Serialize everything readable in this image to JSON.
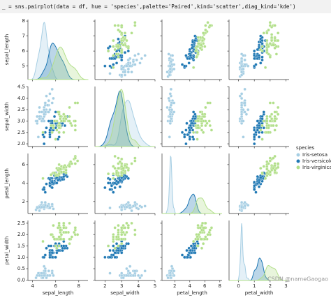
{
  "code": "_ = sns.pairplot(data = df, hue = 'species',palette='Paired',kind='scatter',diag_kind='kde')",
  "watermark": "CSDN @nameGaogao",
  "chart_data": {
    "type": "pairplot",
    "legend_title": "species",
    "legend_position": "right",
    "variables": [
      {
        "label": "sepal_length",
        "xlim": [
          3.6,
          8.8
        ],
        "xticks": [
          4,
          6,
          8
        ],
        "ylim": [
          4.1,
          8.1
        ],
        "yticks": [
          5,
          6,
          7,
          8
        ]
      },
      {
        "label": "sepal_width",
        "xlim": [
          1.4,
          5.0
        ],
        "xticks": [
          2,
          3,
          4,
          5
        ],
        "ylim": [
          1.88,
          4.52
        ],
        "yticks": [
          {
            "value": 2,
            "label": "2.0"
          },
          2.5,
          {
            "value": 3,
            "label": "3.0"
          },
          3.5,
          {
            "value": 4,
            "label": "4.0"
          },
          4.5
        ]
      },
      {
        "label": "petal_length",
        "xlim": [
          0.3,
          8.3
        ],
        "xticks": [
          2,
          4,
          6,
          8
        ],
        "ylim": [
          0.7,
          7.2
        ],
        "yticks": [
          2,
          4,
          6
        ]
      },
      {
        "label": "petal_width",
        "xlim": [
          -0.6,
          3.2
        ],
        "xticks": [
          0,
          1,
          2,
          3
        ],
        "ylim": [
          -0.02,
          2.62
        ],
        "yticks": [
          {
            "value": 0,
            "label": "0.0"
          },
          0.5,
          {
            "value": 1,
            "label": "1.0"
          },
          1.5,
          {
            "value": 2,
            "label": "2.0"
          },
          2.5
        ]
      }
    ],
    "series": [
      {
        "name": "Iris-setosa",
        "color": "#a6cee3",
        "values": [
          [
            5.1,
            3.5,
            1.4,
            0.2
          ],
          [
            4.9,
            3.0,
            1.4,
            0.2
          ],
          [
            4.7,
            3.2,
            1.3,
            0.2
          ],
          [
            4.6,
            3.1,
            1.5,
            0.2
          ],
          [
            5.0,
            3.6,
            1.4,
            0.2
          ],
          [
            5.4,
            3.9,
            1.7,
            0.4
          ],
          [
            4.6,
            3.4,
            1.4,
            0.3
          ],
          [
            5.0,
            3.4,
            1.5,
            0.2
          ],
          [
            4.4,
            2.9,
            1.4,
            0.2
          ],
          [
            4.9,
            3.1,
            1.5,
            0.1
          ],
          [
            5.4,
            3.7,
            1.5,
            0.2
          ],
          [
            4.8,
            3.4,
            1.6,
            0.2
          ],
          [
            4.8,
            3.0,
            1.4,
            0.1
          ],
          [
            4.3,
            3.0,
            1.1,
            0.1
          ],
          [
            5.8,
            4.0,
            1.2,
            0.2
          ],
          [
            5.7,
            4.4,
            1.5,
            0.4
          ],
          [
            5.4,
            3.9,
            1.3,
            0.4
          ],
          [
            5.1,
            3.5,
            1.4,
            0.3
          ],
          [
            5.7,
            3.8,
            1.7,
            0.3
          ],
          [
            5.1,
            3.8,
            1.5,
            0.3
          ],
          [
            5.4,
            3.4,
            1.7,
            0.2
          ],
          [
            5.1,
            3.7,
            1.5,
            0.4
          ],
          [
            4.6,
            3.6,
            1.0,
            0.2
          ],
          [
            5.1,
            3.3,
            1.7,
            0.5
          ],
          [
            4.8,
            3.4,
            1.9,
            0.2
          ],
          [
            5.0,
            3.0,
            1.6,
            0.2
          ],
          [
            5.0,
            3.4,
            1.6,
            0.4
          ],
          [
            5.2,
            3.5,
            1.5,
            0.2
          ],
          [
            5.2,
            3.4,
            1.4,
            0.2
          ],
          [
            4.7,
            3.2,
            1.6,
            0.2
          ],
          [
            4.8,
            3.1,
            1.6,
            0.2
          ],
          [
            5.4,
            3.4,
            1.5,
            0.4
          ],
          [
            5.2,
            4.1,
            1.5,
            0.1
          ],
          [
            5.5,
            4.2,
            1.4,
            0.2
          ],
          [
            4.9,
            3.1,
            1.5,
            0.1
          ],
          [
            5.0,
            3.2,
            1.2,
            0.2
          ],
          [
            5.5,
            3.5,
            1.3,
            0.2
          ],
          [
            4.9,
            3.1,
            1.5,
            0.1
          ],
          [
            4.4,
            3.0,
            1.3,
            0.2
          ],
          [
            5.1,
            3.4,
            1.5,
            0.2
          ],
          [
            5.0,
            3.5,
            1.3,
            0.3
          ],
          [
            4.5,
            2.3,
            1.3,
            0.3
          ],
          [
            4.4,
            3.2,
            1.3,
            0.2
          ],
          [
            5.0,
            3.5,
            1.6,
            0.6
          ],
          [
            5.1,
            3.8,
            1.9,
            0.4
          ],
          [
            4.8,
            3.0,
            1.4,
            0.3
          ],
          [
            5.1,
            3.8,
            1.6,
            0.2
          ],
          [
            4.6,
            3.2,
            1.4,
            0.2
          ],
          [
            5.3,
            3.7,
            1.5,
            0.2
          ],
          [
            5.0,
            3.3,
            1.4,
            0.2
          ]
        ]
      },
      {
        "name": "Iris-versicolor",
        "color": "#1f78b4",
        "values": [
          [
            7.0,
            3.2,
            4.7,
            1.4
          ],
          [
            6.4,
            3.2,
            4.5,
            1.5
          ],
          [
            6.9,
            3.1,
            4.9,
            1.5
          ],
          [
            5.5,
            2.3,
            4.0,
            1.3
          ],
          [
            6.5,
            2.8,
            4.6,
            1.5
          ],
          [
            5.7,
            2.8,
            4.5,
            1.3
          ],
          [
            6.3,
            3.3,
            4.7,
            1.6
          ],
          [
            4.9,
            2.4,
            3.3,
            1.0
          ],
          [
            6.6,
            2.9,
            4.6,
            1.3
          ],
          [
            5.2,
            2.7,
            3.9,
            1.4
          ],
          [
            5.0,
            2.0,
            3.5,
            1.0
          ],
          [
            5.9,
            3.0,
            4.2,
            1.5
          ],
          [
            6.0,
            2.2,
            4.0,
            1.0
          ],
          [
            6.1,
            2.9,
            4.7,
            1.4
          ],
          [
            5.6,
            2.9,
            3.6,
            1.3
          ],
          [
            6.7,
            3.1,
            4.4,
            1.4
          ],
          [
            5.6,
            3.0,
            4.5,
            1.5
          ],
          [
            5.8,
            2.7,
            4.1,
            1.0
          ],
          [
            6.2,
            2.2,
            4.5,
            1.5
          ],
          [
            5.6,
            2.5,
            3.9,
            1.1
          ],
          [
            5.9,
            3.2,
            4.8,
            1.8
          ],
          [
            6.1,
            2.8,
            4.0,
            1.3
          ],
          [
            6.3,
            2.5,
            4.9,
            1.5
          ],
          [
            6.1,
            2.8,
            4.7,
            1.2
          ],
          [
            6.4,
            2.9,
            4.3,
            1.3
          ],
          [
            6.6,
            3.0,
            4.4,
            1.4
          ],
          [
            6.8,
            2.8,
            4.8,
            1.4
          ],
          [
            6.7,
            3.0,
            5.0,
            1.7
          ],
          [
            6.0,
            2.9,
            4.5,
            1.5
          ],
          [
            5.7,
            2.6,
            3.5,
            1.0
          ],
          [
            5.5,
            2.4,
            3.8,
            1.1
          ],
          [
            5.5,
            2.4,
            3.7,
            1.0
          ],
          [
            5.8,
            2.7,
            3.9,
            1.2
          ],
          [
            6.0,
            2.7,
            5.1,
            1.6
          ],
          [
            5.4,
            3.0,
            4.5,
            1.5
          ],
          [
            6.0,
            3.4,
            4.5,
            1.6
          ],
          [
            6.7,
            3.1,
            4.7,
            1.5
          ],
          [
            6.3,
            2.3,
            4.4,
            1.3
          ],
          [
            5.6,
            3.0,
            4.1,
            1.3
          ],
          [
            5.5,
            2.5,
            4.0,
            1.3
          ],
          [
            5.5,
            2.6,
            4.4,
            1.2
          ],
          [
            6.1,
            3.0,
            4.6,
            1.4
          ],
          [
            5.8,
            2.6,
            4.0,
            1.2
          ],
          [
            5.0,
            2.3,
            3.3,
            1.0
          ],
          [
            5.6,
            2.7,
            4.2,
            1.3
          ],
          [
            5.7,
            3.0,
            4.2,
            1.2
          ],
          [
            5.7,
            2.9,
            4.2,
            1.3
          ],
          [
            6.2,
            2.9,
            4.3,
            1.3
          ],
          [
            5.1,
            2.5,
            3.0,
            1.1
          ],
          [
            5.7,
            2.8,
            4.1,
            1.3
          ]
        ]
      },
      {
        "name": "Iris-virginica",
        "color": "#b2df8a",
        "values": [
          [
            6.3,
            3.3,
            6.0,
            2.5
          ],
          [
            5.8,
            2.7,
            5.1,
            1.9
          ],
          [
            7.1,
            3.0,
            5.9,
            2.1
          ],
          [
            6.3,
            2.9,
            5.6,
            1.8
          ],
          [
            6.5,
            3.0,
            5.8,
            2.2
          ],
          [
            7.6,
            3.0,
            6.6,
            2.1
          ],
          [
            4.9,
            2.5,
            4.5,
            1.7
          ],
          [
            7.3,
            2.9,
            6.3,
            1.8
          ],
          [
            6.7,
            2.5,
            5.8,
            1.8
          ],
          [
            7.2,
            3.6,
            6.1,
            2.5
          ],
          [
            6.5,
            3.2,
            5.1,
            2.0
          ],
          [
            6.4,
            2.7,
            5.3,
            1.9
          ],
          [
            6.8,
            3.0,
            5.5,
            2.1
          ],
          [
            5.7,
            2.5,
            5.0,
            2.0
          ],
          [
            5.8,
            2.8,
            5.1,
            2.4
          ],
          [
            6.4,
            3.2,
            5.3,
            2.3
          ],
          [
            6.5,
            3.0,
            5.5,
            1.8
          ],
          [
            7.7,
            3.8,
            6.7,
            2.2
          ],
          [
            7.7,
            2.6,
            6.9,
            2.3
          ],
          [
            6.0,
            2.2,
            5.0,
            1.5
          ],
          [
            6.9,
            3.2,
            5.7,
            2.3
          ],
          [
            5.6,
            2.8,
            4.9,
            2.0
          ],
          [
            7.7,
            2.8,
            6.7,
            2.0
          ],
          [
            6.3,
            2.7,
            4.9,
            1.8
          ],
          [
            6.7,
            3.3,
            5.7,
            2.1
          ],
          [
            7.2,
            3.2,
            6.0,
            1.8
          ],
          [
            6.2,
            2.8,
            4.8,
            1.8
          ],
          [
            6.1,
            3.0,
            4.9,
            1.8
          ],
          [
            6.4,
            2.8,
            5.6,
            2.1
          ],
          [
            7.2,
            3.0,
            5.8,
            1.6
          ],
          [
            7.4,
            2.8,
            6.1,
            1.9
          ],
          [
            7.9,
            3.8,
            6.4,
            2.0
          ],
          [
            6.4,
            2.8,
            5.6,
            2.2
          ],
          [
            6.3,
            2.8,
            5.1,
            1.5
          ],
          [
            6.1,
            2.6,
            5.6,
            1.4
          ],
          [
            7.7,
            3.0,
            6.1,
            2.3
          ],
          [
            6.3,
            3.4,
            5.6,
            2.4
          ],
          [
            6.4,
            3.1,
            5.5,
            1.8
          ],
          [
            6.0,
            3.0,
            4.8,
            1.8
          ],
          [
            6.9,
            3.1,
            5.4,
            2.1
          ],
          [
            6.7,
            3.1,
            5.6,
            2.4
          ],
          [
            6.9,
            3.1,
            5.1,
            2.3
          ],
          [
            5.8,
            2.7,
            5.1,
            1.9
          ],
          [
            6.8,
            3.2,
            5.9,
            2.3
          ],
          [
            6.7,
            3.3,
            5.7,
            2.5
          ],
          [
            6.7,
            3.0,
            5.2,
            2.3
          ],
          [
            6.3,
            2.5,
            5.0,
            1.9
          ],
          [
            6.5,
            3.0,
            5.2,
            2.0
          ],
          [
            6.2,
            3.4,
            5.4,
            2.3
          ],
          [
            5.9,
            3.0,
            5.1,
            1.8
          ]
        ]
      }
    ]
  }
}
